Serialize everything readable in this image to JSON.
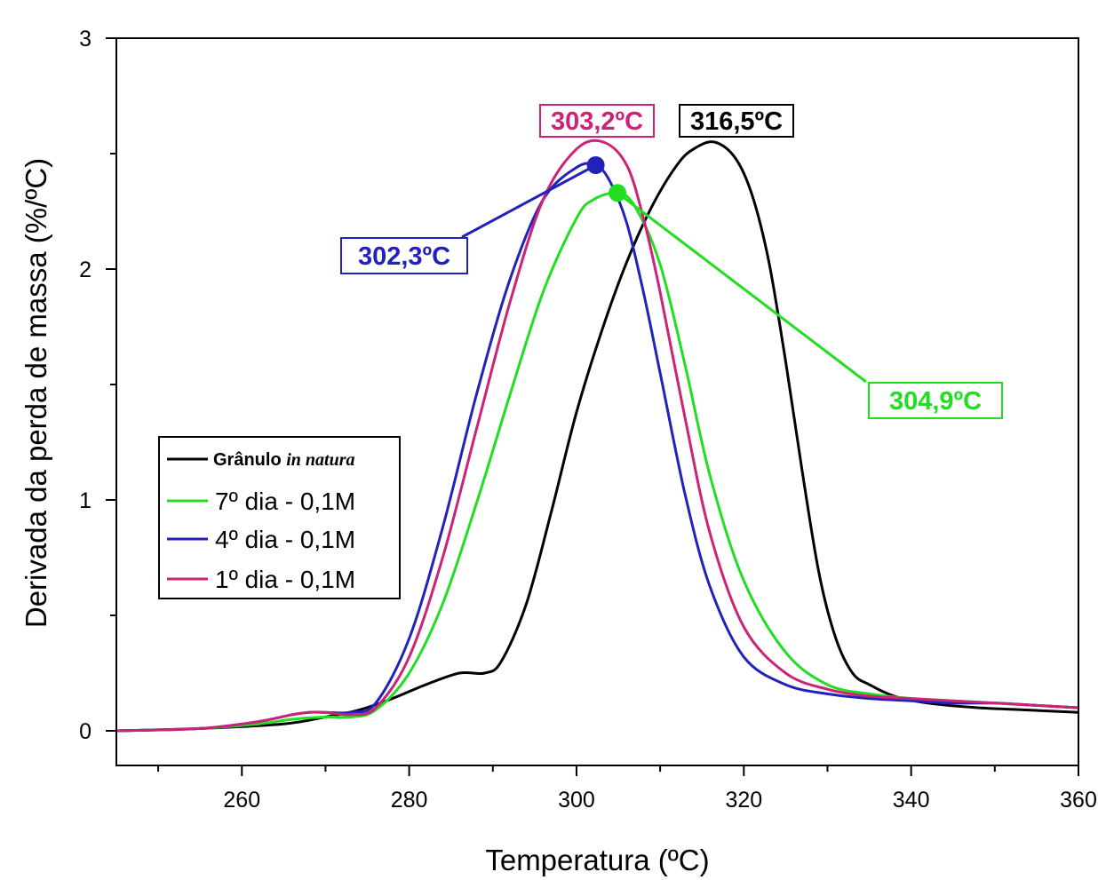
{
  "chart_data": {
    "type": "line",
    "title": "",
    "xlabel": "Temperatura (ºC)",
    "ylabel": "Derivada da perda de massa (%/ºC)",
    "xlim": [
      245,
      360
    ],
    "ylim": [
      -0.15,
      3
    ],
    "xticks": [
      260,
      280,
      300,
      320,
      340,
      360
    ],
    "yticks": [
      0,
      1,
      2,
      3
    ],
    "grid": false,
    "legend_position": "middle-left",
    "series": [
      {
        "name_text": "Grânulo",
        "name_italic": "in natura",
        "color": "#000000",
        "x": [
          245,
          255,
          265,
          270,
          274,
          278,
          282,
          286,
          289,
          291,
          294,
          297,
          300,
          303,
          306,
          309,
          312,
          314,
          316.5,
          319,
          321,
          323,
          325,
          327,
          329,
          331,
          333,
          335,
          338,
          342,
          348,
          354,
          360
        ],
        "y": [
          0,
          0.01,
          0.03,
          0.06,
          0.09,
          0.14,
          0.2,
          0.25,
          0.25,
          0.3,
          0.55,
          0.95,
          1.38,
          1.73,
          2.03,
          2.27,
          2.45,
          2.52,
          2.55,
          2.48,
          2.32,
          2.03,
          1.6,
          1.12,
          0.68,
          0.4,
          0.25,
          0.2,
          0.15,
          0.12,
          0.1,
          0.09,
          0.08
        ]
      },
      {
        "name": "7º dia - 0,1M",
        "color": "#22dd22",
        "x": [
          245,
          255,
          262,
          266,
          270,
          273,
          276,
          280,
          284,
          288,
          292,
          296,
          300,
          302,
          304.9,
          307,
          310,
          313,
          316,
          320,
          325,
          330,
          335,
          340,
          345,
          350,
          355,
          360
        ],
        "y": [
          0,
          0.01,
          0.03,
          0.05,
          0.06,
          0.06,
          0.09,
          0.25,
          0.55,
          0.98,
          1.45,
          1.9,
          2.22,
          2.3,
          2.33,
          2.27,
          2.02,
          1.58,
          1.1,
          0.65,
          0.34,
          0.2,
          0.16,
          0.14,
          0.13,
          0.12,
          0.11,
          0.1
        ]
      },
      {
        "name": "4º dia - 0,1M",
        "color": "#2222bb",
        "x": [
          245,
          255,
          262,
          266,
          268,
          270,
          273,
          276,
          280,
          284,
          288,
          292,
          296,
          300,
          302.3,
          304,
          306,
          308,
          310,
          313,
          316,
          320,
          325,
          330,
          335,
          340,
          345,
          350,
          355,
          360
        ],
        "y": [
          0,
          0.01,
          0.04,
          0.07,
          0.08,
          0.08,
          0.08,
          0.12,
          0.4,
          0.88,
          1.45,
          1.95,
          2.3,
          2.44,
          2.45,
          2.38,
          2.2,
          1.9,
          1.55,
          1.02,
          0.62,
          0.32,
          0.2,
          0.16,
          0.14,
          0.13,
          0.12,
          0.12,
          0.11,
          0.1
        ]
      },
      {
        "name": "1º dia - 0,1M",
        "color": "#cc2277",
        "x": [
          245,
          255,
          262,
          266,
          268,
          270,
          273,
          276,
          280,
          284,
          288,
          292,
          296,
          300,
          303.2,
          306,
          308,
          310,
          313,
          316,
          320,
          325,
          330,
          335,
          340,
          345,
          350,
          355,
          360
        ],
        "y": [
          0,
          0.01,
          0.04,
          0.07,
          0.08,
          0.08,
          0.07,
          0.1,
          0.32,
          0.75,
          1.3,
          1.85,
          2.3,
          2.52,
          2.55,
          2.45,
          2.22,
          1.9,
          1.35,
          0.85,
          0.45,
          0.25,
          0.18,
          0.15,
          0.14,
          0.13,
          0.12,
          0.11,
          0.1
        ]
      }
    ],
    "annotations": [
      {
        "text": "303,2ºC",
        "color": "#cc2277",
        "point": [
          303.2,
          2.55
        ]
      },
      {
        "text": "316,5ºC",
        "color": "#000000",
        "point": [
          316.5,
          2.55
        ]
      },
      {
        "text": "302,3ºC",
        "color": "#2222bb",
        "point": [
          302.3,
          2.45
        ]
      },
      {
        "text": "304,9ºC",
        "color": "#22dd22",
        "point": [
          304.9,
          2.33
        ]
      }
    ]
  }
}
